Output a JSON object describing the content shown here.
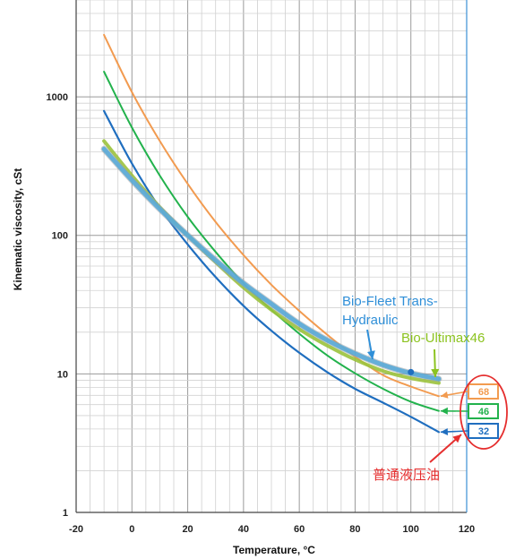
{
  "chart_data": {
    "type": "line",
    "xlabel": "Temperature, °C",
    "ylabel": "Kinematic viscosity, cSt",
    "xlim": [
      -20,
      120
    ],
    "ylim": [
      1,
      5000
    ],
    "yscale": "log",
    "grid": true,
    "x_ticks": [
      "-20",
      "0",
      "20",
      "40",
      "60",
      "80",
      "100",
      "120"
    ],
    "y_ticks": [
      {
        "value": 1,
        "label": "1"
      },
      {
        "value": 10,
        "label": "10"
      },
      {
        "value": 100,
        "label": "100"
      },
      {
        "value": 1000,
        "label": "1000"
      }
    ],
    "series": [
      {
        "name": "68",
        "color": "#f29b50",
        "x": [
          -10,
          0,
          10,
          20,
          30,
          40,
          50,
          60,
          70,
          80,
          90,
          100,
          110
        ],
        "y": [
          2800,
          1080,
          480,
          235,
          125,
          72,
          44,
          28.5,
          19.2,
          13.3,
          9.8,
          8.1,
          6.9
        ]
      },
      {
        "name": "46",
        "color": "#22b24c",
        "x": [
          -10,
          0,
          10,
          20,
          30,
          40,
          50,
          60,
          70,
          80,
          90,
          100,
          110
        ],
        "y": [
          1520,
          600,
          270,
          136,
          76,
          45,
          29,
          19.5,
          13.6,
          10.1,
          7.8,
          6.3,
          5.4
        ]
      },
      {
        "name": "32",
        "color": "#1f6ebf",
        "x": [
          -10,
          0,
          10,
          20,
          30,
          40,
          50,
          60,
          70,
          80,
          90,
          100,
          110
        ],
        "y": [
          790,
          330,
          158,
          86,
          50,
          31,
          20.5,
          14.2,
          10.3,
          7.8,
          6.2,
          4.9,
          3.8
        ]
      },
      {
        "name": "Bio-Ultimax46",
        "color": "#9bc23c",
        "x": [
          -10,
          0,
          10,
          20,
          30,
          40,
          50,
          60,
          70,
          80,
          90,
          100,
          110
        ],
        "y": [
          480,
          270,
          160,
          100,
          64,
          42,
          29,
          21,
          16,
          12.7,
          10.5,
          9.3,
          8.6
        ]
      },
      {
        "name": "Bio-Fleet Trans-Hydraulic",
        "color": "#5aabd8",
        "x": [
          -10,
          0,
          10,
          20,
          30,
          40,
          50,
          60,
          70,
          80,
          90,
          100,
          110
        ],
        "y": [
          420,
          250,
          155,
          100,
          66,
          45,
          32,
          23,
          17.5,
          14,
          11.6,
          10.1,
          9.2
        ]
      }
    ],
    "annotations": {
      "bio_fleet_line1": "Bio-Fleet Trans-",
      "bio_fleet_line2": "Hydraulic",
      "bio_ultimax": "Bio-Ultimax46",
      "conventional": "普通液压油"
    },
    "label_boxes": [
      "68",
      "46",
      "32"
    ]
  }
}
